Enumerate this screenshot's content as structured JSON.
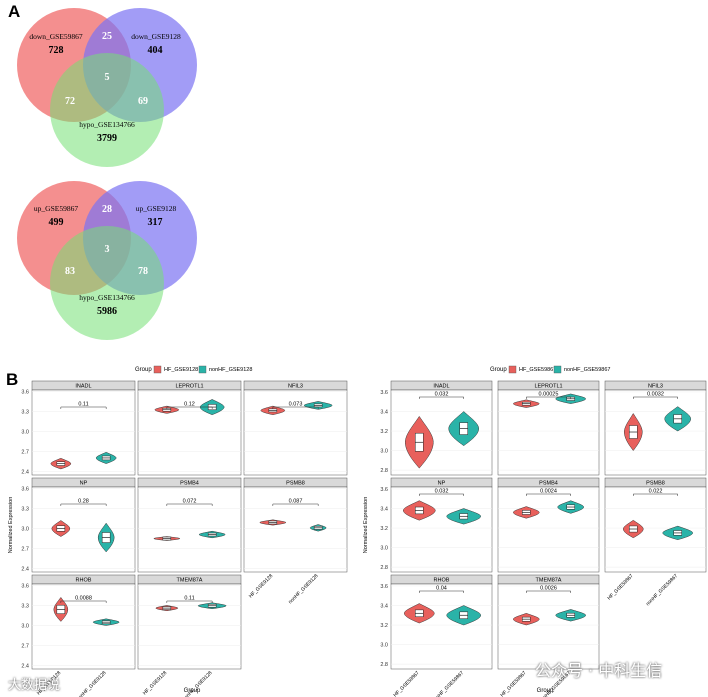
{
  "panel_a": "A",
  "panel_b": "B",
  "venn_down": {
    "sets": [
      "down_GSE59867",
      "down_GSE9128",
      "hypo_GSE134766"
    ],
    "counts": {
      "only1": "728",
      "only2": "404",
      "only3": "3799",
      "s12": "25",
      "s13": "72",
      "s23": "69",
      "s123": "5"
    }
  },
  "venn_up": {
    "sets": [
      "up_GSE59867",
      "up_GSE9128",
      "hypo_GSE134766"
    ],
    "counts": {
      "only1": "499",
      "only2": "317",
      "only3": "5986",
      "s12": "28",
      "s13": "83",
      "s23": "78",
      "s123": "3"
    }
  },
  "colors": {
    "set1": "#f06a6a",
    "set2": "#7b72f2",
    "set3": "#74e074",
    "hf": "#e8605c",
    "nonhf": "#2ab3a8"
  },
  "left_plot": {
    "legend_title": "Group",
    "legend": [
      "HF_GSE9128",
      "nonHF_GSE9128"
    ],
    "ylabel": "Normalized Expression",
    "xlabel": "Group",
    "xticks": [
      "HF_GSE9128",
      "nonHF_GSE9128"
    ],
    "yticks": [
      "2.4",
      "2.7",
      "3.0",
      "3.3",
      "3.6"
    ],
    "facets": [
      {
        "name": "INADL",
        "p": "0.11"
      },
      {
        "name": "LEPROTL1",
        "p": "0.12"
      },
      {
        "name": "NFIL3",
        "p": "0.073"
      },
      {
        "name": "NP",
        "p": "0.28"
      },
      {
        "name": "PSMB4",
        "p": "0.072"
      },
      {
        "name": "PSMB8",
        "p": "0.087"
      },
      {
        "name": "RHOB",
        "p": "0.0088"
      },
      {
        "name": "TMEM87A",
        "p": "0.11"
      }
    ]
  },
  "right_plot": {
    "legend_title": "Group",
    "legend": [
      "HF_GSE59867",
      "nonHF_GSE59867"
    ],
    "ylabel": "Normalized Expression",
    "xlabel": "Group",
    "xticks": [
      "HF_GSE59867",
      "nonHF_GSE59867"
    ],
    "yticks": [
      "2.8",
      "3.0",
      "3.2",
      "3.4",
      "3.6"
    ],
    "facets": [
      {
        "name": "INADL",
        "p": "0.032"
      },
      {
        "name": "LEPROTL1",
        "p": "0.00025"
      },
      {
        "name": "NFIL3",
        "p": "0.0032"
      },
      {
        "name": "NP",
        "p": "0.032"
      },
      {
        "name": "PSMB4",
        "p": "0.0024"
      },
      {
        "name": "PSMB8",
        "p": "0.022"
      },
      {
        "name": "RHOB",
        "p": "0.04"
      },
      {
        "name": "TMEM87A",
        "p": "0.0026"
      }
    ]
  },
  "watermark_left": "大数据说",
  "watermark_right": "公众号 · 中科生信"
}
